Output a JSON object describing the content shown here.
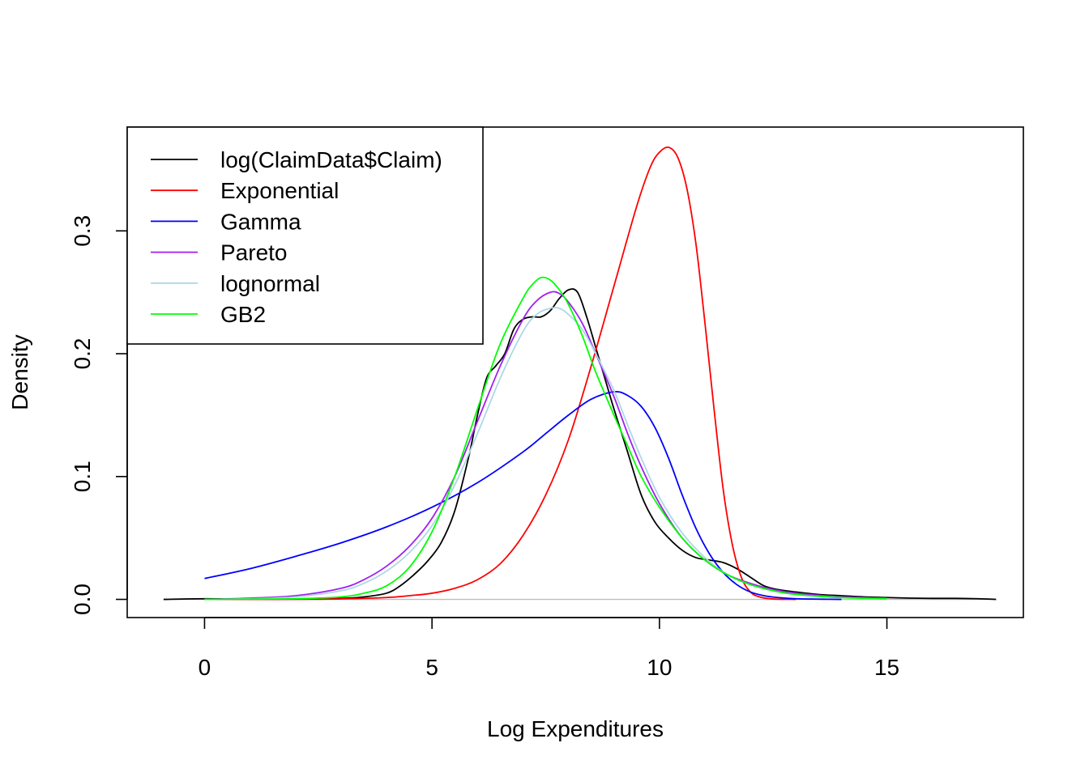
{
  "chart_data": {
    "type": "line",
    "xlabel": "Log Expenditures",
    "ylabel": "Density",
    "xlim": [
      -1.7,
      18.0
    ],
    "ylim": [
      -0.0148,
      0.3845
    ],
    "x_ticks": [
      0,
      5,
      10,
      15
    ],
    "x_tick_labels": [
      "0",
      "5",
      "10",
      "15"
    ],
    "y_ticks": [
      0.0,
      0.1,
      0.2,
      0.3
    ],
    "y_tick_labels": [
      "0.0",
      "0.1",
      "0.2",
      "0.3"
    ],
    "grid": false,
    "legend_position": "top-left",
    "zero_line_color": "#bebebe",
    "series": [
      {
        "name": "log(ClaimData$Claim)",
        "color": "#000000",
        "x": [
          -0.9,
          0.0,
          1.0,
          2.0,
          3.0,
          3.5,
          4.0,
          4.3,
          4.6,
          4.9,
          5.2,
          5.5,
          5.8,
          6.0,
          6.2,
          6.4,
          6.6,
          6.8,
          7.0,
          7.2,
          7.4,
          7.6,
          7.8,
          8.0,
          8.2,
          8.4,
          8.6,
          8.8,
          9.0,
          9.3,
          9.6,
          9.9,
          10.2,
          10.5,
          10.8,
          11.1,
          11.4,
          11.7,
          12.0,
          12.3,
          12.6,
          13.0,
          13.5,
          14.0,
          14.5,
          15.0,
          15.5,
          16.0,
          16.5,
          17.0,
          17.4
        ],
        "y": [
          0.0,
          0.0005,
          0.0002,
          0.0002,
          0.0008,
          0.002,
          0.005,
          0.011,
          0.02,
          0.031,
          0.046,
          0.072,
          0.115,
          0.15,
          0.18,
          0.19,
          0.2,
          0.22,
          0.228,
          0.23,
          0.23,
          0.235,
          0.245,
          0.252,
          0.25,
          0.23,
          0.205,
          0.18,
          0.155,
          0.12,
          0.085,
          0.063,
          0.05,
          0.04,
          0.034,
          0.032,
          0.03,
          0.025,
          0.018,
          0.011,
          0.008,
          0.006,
          0.004,
          0.003,
          0.002,
          0.0015,
          0.001,
          0.0008,
          0.0008,
          0.0005,
          0.0
        ]
      },
      {
        "name": "Exponential",
        "color": "#ff0000",
        "x": [
          0.0,
          2.0,
          3.0,
          4.0,
          4.5,
          5.0,
          5.5,
          6.0,
          6.5,
          7.0,
          7.5,
          8.0,
          8.5,
          9.0,
          9.5,
          9.8,
          10.0,
          10.2,
          10.4,
          10.6,
          10.8,
          11.0,
          11.2,
          11.4,
          11.6,
          11.8,
          12.0,
          12.2,
          12.5,
          13.0
        ],
        "y": [
          0.0,
          0.0001,
          0.0004,
          0.0015,
          0.003,
          0.005,
          0.009,
          0.016,
          0.029,
          0.052,
          0.085,
          0.13,
          0.19,
          0.255,
          0.32,
          0.352,
          0.364,
          0.368,
          0.36,
          0.335,
          0.29,
          0.225,
          0.155,
          0.09,
          0.045,
          0.018,
          0.006,
          0.002,
          0.0003,
          0.0
        ]
      },
      {
        "name": "Gamma",
        "color": "#0000ff",
        "x": [
          0.0,
          1.0,
          2.0,
          3.0,
          4.0,
          5.0,
          6.0,
          7.0,
          7.5,
          8.0,
          8.5,
          9.0,
          9.3,
          9.6,
          9.9,
          10.2,
          10.5,
          10.8,
          11.1,
          11.4,
          11.7,
          12.0,
          12.3,
          12.6,
          13.0,
          13.5,
          14.0
        ],
        "y": [
          0.017,
          0.025,
          0.035,
          0.046,
          0.059,
          0.075,
          0.095,
          0.12,
          0.135,
          0.15,
          0.163,
          0.169,
          0.166,
          0.157,
          0.14,
          0.115,
          0.085,
          0.058,
          0.037,
          0.022,
          0.012,
          0.006,
          0.003,
          0.0015,
          0.0005,
          0.0002,
          0.0
        ]
      },
      {
        "name": "Pareto",
        "color": "#a020f0",
        "x": [
          0.0,
          1.0,
          2.0,
          3.0,
          3.5,
          4.0,
          4.5,
          5.0,
          5.5,
          6.0,
          6.5,
          7.0,
          7.3,
          7.6,
          7.8,
          8.0,
          8.3,
          8.6,
          9.0,
          9.3,
          9.6,
          10.0,
          10.5,
          11.0,
          11.5,
          12.0,
          12.5,
          13.0,
          14.0,
          15.0
        ],
        "y": [
          0.0,
          0.001,
          0.003,
          0.009,
          0.016,
          0.027,
          0.043,
          0.066,
          0.1,
          0.145,
          0.19,
          0.228,
          0.243,
          0.25,
          0.249,
          0.242,
          0.225,
          0.2,
          0.165,
          0.135,
          0.108,
          0.078,
          0.05,
          0.032,
          0.02,
          0.013,
          0.008,
          0.005,
          0.002,
          0.0008
        ]
      },
      {
        "name": "lognormal",
        "color": "#add8e6",
        "x": [
          0.0,
          1.0,
          2.0,
          3.0,
          3.5,
          4.0,
          4.5,
          5.0,
          5.5,
          6.0,
          6.5,
          7.0,
          7.3,
          7.6,
          7.8,
          8.0,
          8.3,
          8.6,
          9.0,
          9.3,
          9.6,
          10.0,
          10.5,
          11.0,
          11.5,
          12.0,
          12.5,
          13.0,
          14.0,
          15.0
        ],
        "y": [
          0.0,
          0.0005,
          0.002,
          0.007,
          0.013,
          0.023,
          0.038,
          0.06,
          0.093,
          0.135,
          0.18,
          0.218,
          0.232,
          0.237,
          0.237,
          0.232,
          0.22,
          0.2,
          0.17,
          0.142,
          0.115,
          0.083,
          0.054,
          0.034,
          0.02,
          0.012,
          0.007,
          0.004,
          0.0015,
          0.0005
        ]
      },
      {
        "name": "GB2",
        "color": "#00ff00",
        "x": [
          0.0,
          1.0,
          2.0,
          3.0,
          3.5,
          4.0,
          4.5,
          5.0,
          5.5,
          6.0,
          6.5,
          7.0,
          7.2,
          7.4,
          7.6,
          7.8,
          8.0,
          8.3,
          8.6,
          9.0,
          9.3,
          9.6,
          10.0,
          10.5,
          11.0,
          11.5,
          12.0,
          12.5,
          13.0,
          14.0,
          15.0
        ],
        "y": [
          0.0,
          0.0002,
          0.0005,
          0.002,
          0.005,
          0.011,
          0.026,
          0.055,
          0.1,
          0.155,
          0.208,
          0.245,
          0.256,
          0.262,
          0.26,
          0.252,
          0.24,
          0.215,
          0.185,
          0.15,
          0.125,
          0.1,
          0.075,
          0.05,
          0.032,
          0.02,
          0.012,
          0.007,
          0.004,
          0.0015,
          0.0005
        ]
      }
    ]
  }
}
